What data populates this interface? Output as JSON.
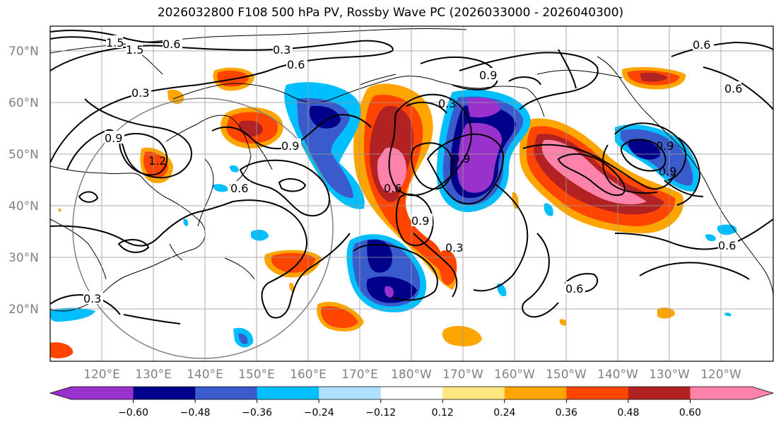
{
  "title": "2026032800 F108 500 hPa PV, Rossby Wave PC (2026033000 - 2026040300)",
  "lat_labels": [
    "70°N",
    "60°N",
    "50°N",
    "40°N",
    "30°N",
    "20°N"
  ],
  "lon_labels": [
    "120°E",
    "130°E",
    "140°E",
    "150°E",
    "160°E",
    "170°E",
    "180°W",
    "170°W",
    "160°W",
    "150°W",
    "140°W",
    "130°W",
    "120°W"
  ],
  "contour_labels": [
    "1.5",
    "1.5",
    "0.6",
    "0.3",
    "0.6",
    "0.3",
    "0.9",
    "0.9",
    "1.2",
    "0.6",
    "0.9",
    "0.9",
    "0.6",
    "0.9",
    "0.3",
    "0.9",
    "0.3",
    "0.6",
    "0.6",
    "0.6",
    "0.9",
    "0.6",
    "0.3"
  ],
  "colorbar": {
    "ticks": [
      "−0.60",
      "−0.48",
      "−0.36",
      "−0.24",
      "−0.12",
      "0.12",
      "0.24",
      "0.36",
      "0.48",
      "0.60"
    ],
    "colors": [
      "#9932cc",
      "#00008b",
      "#3a5bcc",
      "#00bfff",
      "#b0e0ff",
      "#ffffff",
      "#ffe680",
      "#ffa500",
      "#ff4500",
      "#b22222",
      "#ff82ab"
    ]
  }
}
